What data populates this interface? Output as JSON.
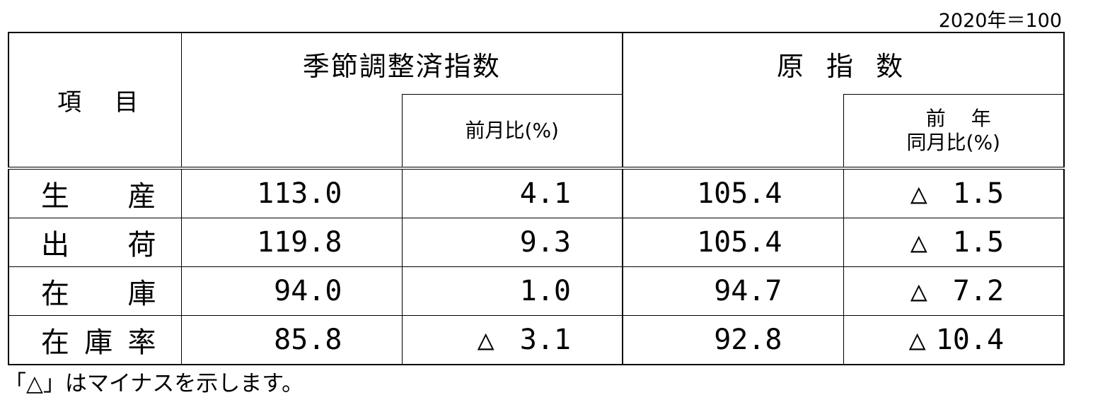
{
  "base_note": "2020年＝100",
  "header": {
    "item": "項　目",
    "seasonal": "季節調整済指数",
    "seasonal_mom": "前月比(%)",
    "original": "原 指 数",
    "original_yoy_line1": "前　年",
    "original_yoy_line2": "同月比(%)"
  },
  "rows": [
    {
      "label": "生　　産",
      "sa": "113.0",
      "mom_sign": "",
      "mom": "4.1",
      "orig": "105.4",
      "yoy_sign": "△",
      "yoy": "1.5"
    },
    {
      "label": "出　　荷",
      "sa": "119.8",
      "mom_sign": "",
      "mom": "9.3",
      "orig": "105.4",
      "yoy_sign": "△",
      "yoy": "1.5"
    },
    {
      "label": "在　　庫",
      "sa": "94.0",
      "mom_sign": "",
      "mom": "1.0",
      "orig": "94.7",
      "yoy_sign": "△",
      "yoy": "7.2"
    },
    {
      "label": "在庫率",
      "sa": "85.8",
      "mom_sign": "△",
      "mom": "3.1",
      "orig": "92.8",
      "yoy_sign": "△",
      "yoy": "10.4"
    }
  ],
  "footnote": "「△」はマイナスを示します。"
}
